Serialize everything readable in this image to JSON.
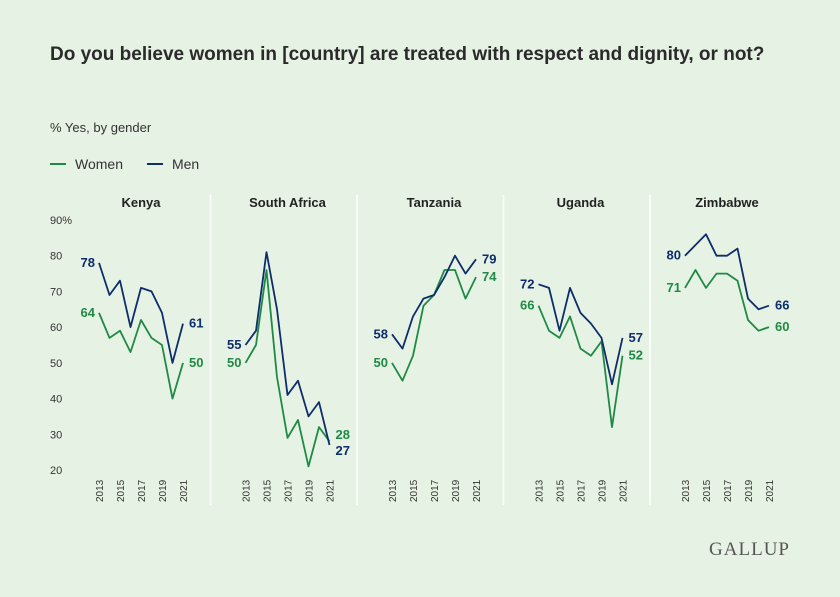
{
  "header": {
    "title": "Do you believe women in [country] are treated with respect and dignity, or not?",
    "subtitle": "% Yes, by gender"
  },
  "legend": {
    "women_label": "Women",
    "men_label": "Men"
  },
  "brand": {
    "logo_text": "GALLUP"
  },
  "colors": {
    "women": "#1f8a45",
    "men": "#0d2d6b",
    "background": "#e6f2e3",
    "divider": "#ffffff"
  },
  "chart_data": {
    "type": "line",
    "y_axis": {
      "ylim": [
        20,
        90
      ],
      "ticks": [
        "90%",
        "80",
        "70",
        "60",
        "50",
        "40",
        "30",
        "20"
      ]
    },
    "x_axis": {
      "xlim": [
        2013,
        2021
      ],
      "tick_labels": [
        "2013",
        "2015",
        "2017",
        "2019",
        "2021"
      ]
    },
    "panels": [
      {
        "country": "Kenya",
        "x": [
          2013,
          2014,
          2015,
          2016,
          2017,
          2018,
          2019,
          2020,
          2021
        ],
        "series": [
          {
            "name": "Women",
            "values": [
              64,
              57,
              59,
              53,
              62,
              57,
              55,
              40,
              50
            ]
          },
          {
            "name": "Men",
            "values": [
              78,
              69,
              73,
              60,
              71,
              70,
              64,
              50,
              61
            ]
          }
        ],
        "labels": {
          "women_start": "64",
          "women_end": "50",
          "men_start": "78",
          "men_end": "61"
        }
      },
      {
        "country": "South Africa",
        "x": [
          2013,
          2014,
          2015,
          2016,
          2017,
          2018,
          2019,
          2020,
          2021
        ],
        "series": [
          {
            "name": "Women",
            "values": [
              50,
              55,
              76,
              46,
              29,
              34,
              21,
              32,
              28
            ]
          },
          {
            "name": "Men",
            "values": [
              55,
              59,
              81,
              65,
              41,
              45,
              35,
              39,
              27
            ]
          }
        ],
        "labels": {
          "women_start": "50",
          "women_end": "28",
          "men_start": "55",
          "men_end": "27"
        }
      },
      {
        "country": "Tanzania",
        "x": [
          2013,
          2014,
          2015,
          2016,
          2017,
          2018,
          2019,
          2020,
          2021
        ],
        "series": [
          {
            "name": "Women",
            "values": [
              50,
              45,
              52,
              66,
              69,
              76,
              76,
              68,
              74
            ]
          },
          {
            "name": "Men",
            "values": [
              58,
              54,
              63,
              68,
              69,
              74,
              80,
              75,
              79
            ]
          }
        ],
        "labels": {
          "women_start": "50",
          "women_end": "74",
          "men_start": "58",
          "men_end": "79"
        }
      },
      {
        "country": "Uganda",
        "x": [
          2013,
          2014,
          2015,
          2016,
          2017,
          2018,
          2019,
          2020,
          2021
        ],
        "series": [
          {
            "name": "Women",
            "values": [
              66,
              59,
              57,
              63,
              54,
              52,
              56,
              32,
              52
            ]
          },
          {
            "name": "Men",
            "values": [
              72,
              71,
              59,
              71,
              64,
              61,
              57,
              44,
              57
            ]
          }
        ],
        "labels": {
          "women_start": "66",
          "women_end": "52",
          "men_start": "72",
          "men_end": "57"
        }
      },
      {
        "country": "Zimbabwe",
        "x": [
          2013,
          2014,
          2015,
          2016,
          2017,
          2018,
          2019,
          2020,
          2021
        ],
        "series": [
          {
            "name": "Women",
            "values": [
              71,
              76,
              71,
              75,
              75,
              73,
              62,
              59,
              60
            ]
          },
          {
            "name": "Men",
            "values": [
              80,
              83,
              86,
              80,
              80,
              82,
              68,
              65,
              66
            ]
          }
        ],
        "labels": {
          "women_start": "71",
          "women_end": "60",
          "men_start": "80",
          "men_end": "66"
        }
      }
    ]
  }
}
